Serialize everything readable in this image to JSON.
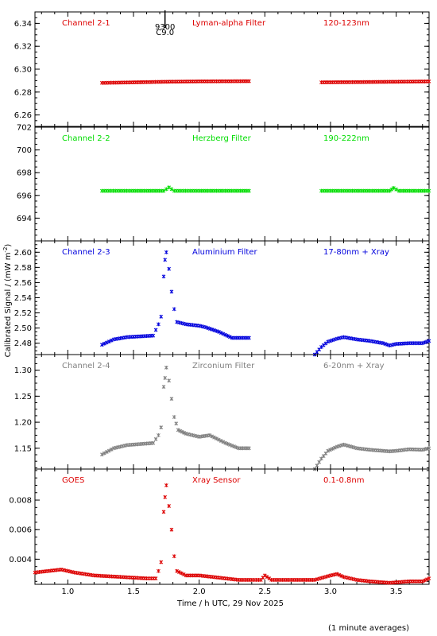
{
  "chart_data": {
    "type": "scatter",
    "xlabel": "Time / h UTC, 29 Nov 2025",
    "ylabel": "Calibrated Signal / (mW m",
    "ylabel_sup": "-2",
    "ylabel_close": ")",
    "footnote": "(1 minute averages)",
    "xlim": [
      0.75,
      3.75
    ],
    "xticks": [
      1.0,
      1.5,
      2.0,
      2.5,
      3.0,
      3.5
    ],
    "xtick_labels": [
      "1.0",
      "1.5",
      "2.0",
      "2.5",
      "3.0",
      "3.5"
    ],
    "flare_marker": {
      "x": 1.74,
      "label_top": "9300",
      "label_bottom": "C9.0"
    },
    "panels": [
      {
        "channel": "Channel 2-1",
        "filter": "Lyman-alpha Filter",
        "band": "120-123nm",
        "color": "#dd0000",
        "ylim": [
          6.25,
          6.35
        ],
        "yticks": [
          6.26,
          6.28,
          6.3,
          6.32,
          6.34
        ],
        "ytick_labels": [
          "6.26",
          "6.28",
          "6.30",
          "6.32",
          "6.34"
        ],
        "series": [
          {
            "x": [
              1.26,
              1.5,
              1.75,
              2.0,
              2.38
            ],
            "y": [
              6.288,
              6.2885,
              6.289,
              6.2893,
              6.2895
            ]
          },
          {
            "x": [
              2.93,
              3.2,
              3.5,
              3.75
            ],
            "y": [
              6.2885,
              6.2887,
              6.289,
              6.2893
            ]
          }
        ]
      },
      {
        "channel": "Channel 2-2",
        "filter": "Herzberg Filter",
        "band": "190-222nm",
        "color": "#00dd00",
        "ylim": [
          692,
          702
        ],
        "yticks": [
          694,
          696,
          698,
          700,
          702
        ],
        "ytick_labels": [
          "694",
          "696",
          "698",
          "700",
          "702"
        ],
        "series": [
          {
            "x": [
              1.26,
              1.5,
              1.73,
              1.77,
              1.81,
              2.0,
              2.38
            ],
            "y": [
              696.4,
              696.4,
              696.4,
              696.7,
              696.4,
              696.4,
              696.4
            ]
          },
          {
            "x": [
              2.93,
              3.2,
              3.45,
              3.48,
              3.52,
              3.75
            ],
            "y": [
              696.4,
              696.4,
              696.4,
              696.65,
              696.4,
              696.4
            ]
          }
        ]
      },
      {
        "channel": "Channel 2-3",
        "filter": "Aluminium Filter",
        "band": "17-80nm + Xray",
        "color": "#0000dd",
        "ylim": [
          2.465,
          2.615
        ],
        "yticks": [
          2.48,
          2.5,
          2.52,
          2.54,
          2.56,
          2.58,
          2.6
        ],
        "ytick_labels": [
          "2.48",
          "2.50",
          "2.52",
          "2.54",
          "2.56",
          "2.58",
          "2.60"
        ],
        "series": [
          {
            "x": [
              1.26,
              1.35,
              1.45,
              1.55,
              1.65,
              1.69,
              1.71,
              1.73,
              1.74,
              1.75,
              1.77,
              1.79,
              1.81,
              1.83,
              1.9,
              2.0,
              2.05,
              2.15,
              2.25,
              2.38
            ],
            "y": [
              2.478,
              2.485,
              2.488,
              2.489,
              2.49,
              2.505,
              2.515,
              2.568,
              2.59,
              2.6,
              2.578,
              2.548,
              2.525,
              2.508,
              2.505,
              2.503,
              2.501,
              2.495,
              2.487,
              2.487
            ]
          },
          {
            "x": [
              2.88,
              2.93,
              2.98,
              3.05,
              3.1,
              3.2,
              3.3,
              3.4,
              3.45,
              3.5,
              3.6,
              3.7,
              3.75
            ],
            "y": [
              2.465,
              2.475,
              2.482,
              2.486,
              2.488,
              2.485,
              2.483,
              2.48,
              2.477,
              2.479,
              2.48,
              2.48,
              2.483
            ]
          }
        ]
      },
      {
        "channel": "Channel 2-4",
        "filter": "Zirconium Filter",
        "band": "6-20nm + Xray",
        "color": "#808080",
        "ylim": [
          1.11,
          1.33
        ],
        "yticks": [
          1.15,
          1.2,
          1.25,
          1.3
        ],
        "ytick_labels": [
          "1.15",
          "1.20",
          "1.25",
          "1.30"
        ],
        "series": [
          {
            "x": [
              1.26,
              1.35,
              1.45,
              1.55,
              1.65,
              1.69,
              1.71,
              1.73,
              1.74,
              1.75,
              1.77,
              1.79,
              1.81,
              1.84,
              1.9,
              2.0,
              2.08,
              2.2,
              2.3,
              2.38
            ],
            "y": [
              1.138,
              1.15,
              1.156,
              1.158,
              1.16,
              1.175,
              1.19,
              1.268,
              1.285,
              1.305,
              1.28,
              1.245,
              1.21,
              1.185,
              1.178,
              1.172,
              1.175,
              1.16,
              1.15,
              1.15
            ]
          },
          {
            "x": [
              2.88,
              2.93,
              2.98,
              3.05,
              3.1,
              3.2,
              3.3,
              3.4,
              3.45,
              3.5,
              3.6,
              3.7,
              3.75
            ],
            "y": [
              1.11,
              1.13,
              1.145,
              1.153,
              1.157,
              1.15,
              1.147,
              1.145,
              1.144,
              1.145,
              1.148,
              1.147,
              1.15
            ]
          }
        ]
      },
      {
        "channel": "GOES",
        "filter": "Xray Sensor",
        "band": "0.1-0.8nm",
        "color": "#dd0000",
        "ylim": [
          0.0023,
          0.0101
        ],
        "yticks": [
          0.004,
          0.006,
          0.008
        ],
        "ytick_labels": [
          "0.004",
          "0.006",
          "0.008"
        ],
        "series": [
          {
            "x": [
              0.75,
              0.85,
              0.95,
              1.05,
              1.2,
              1.4,
              1.6,
              1.67,
              1.69,
              1.71,
              1.73,
              1.74,
              1.75,
              1.77,
              1.79,
              1.81,
              1.83,
              1.9,
              2.0,
              2.1,
              2.2,
              2.3,
              2.4,
              2.47,
              2.5,
              2.55,
              2.7,
              2.8,
              2.88,
              3.0,
              3.05,
              3.1,
              3.2,
              3.3,
              3.45,
              3.6,
              3.7,
              3.75
            ],
            "y": [
              0.0031,
              0.0032,
              0.0033,
              0.0031,
              0.0029,
              0.0028,
              0.0027,
              0.0027,
              0.0032,
              0.0038,
              0.0072,
              0.0082,
              0.009,
              0.0076,
              0.006,
              0.0042,
              0.0032,
              0.0029,
              0.0029,
              0.0028,
              0.0027,
              0.0026,
              0.0026,
              0.0026,
              0.0029,
              0.0026,
              0.0026,
              0.0026,
              0.0026,
              0.0029,
              0.003,
              0.0028,
              0.0026,
              0.0025,
              0.0024,
              0.0025,
              0.0025,
              0.0027
            ]
          }
        ]
      }
    ]
  }
}
